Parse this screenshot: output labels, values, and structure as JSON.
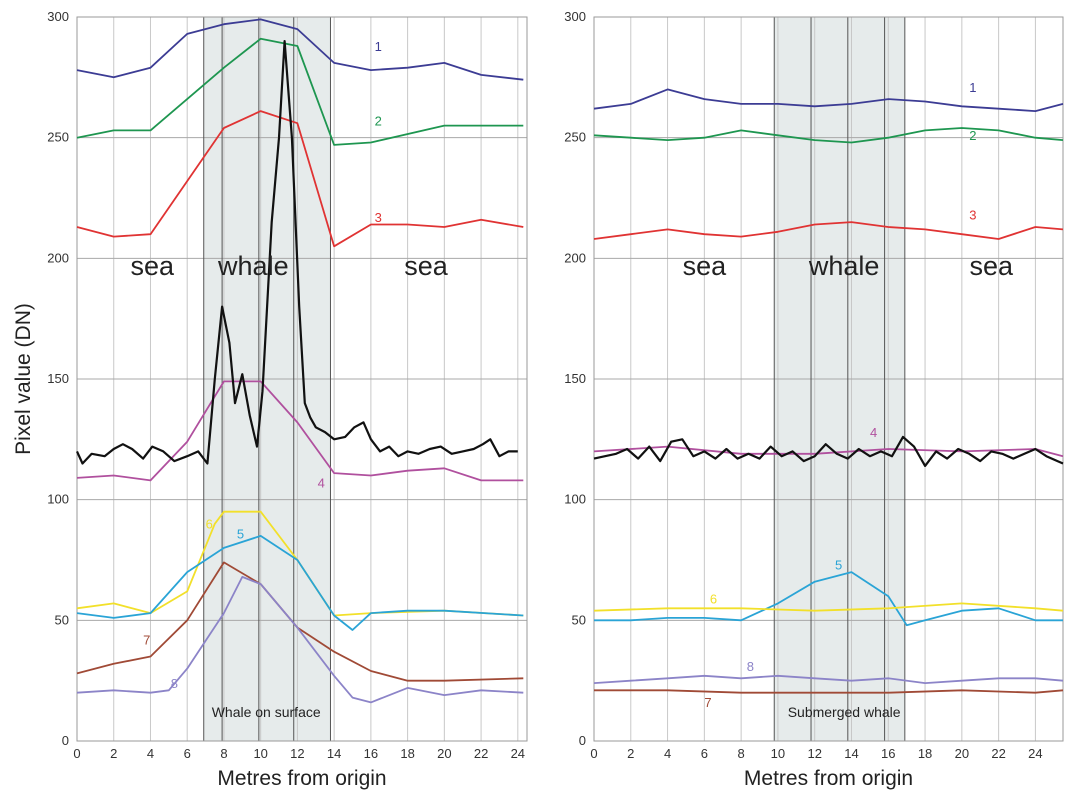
{
  "chart_data": [
    {
      "type": "line",
      "ylabel": "Pixel value (DN)",
      "xlabel": "Metres from origin",
      "xlim": [
        0,
        24.5
      ],
      "ylim": [
        0,
        300
      ],
      "xticks": [
        "0",
        "2",
        "4",
        "6",
        "8",
        "10",
        "12",
        "14",
        "16",
        "18",
        "20",
        "22",
        "24"
      ],
      "yticks": [
        "0",
        "50",
        "100",
        "150",
        "200",
        "250",
        "300"
      ],
      "vgrid": [
        0,
        2,
        4,
        6,
        8,
        10,
        12,
        14,
        16,
        18,
        20,
        22,
        24
      ],
      "shade": [
        6.9,
        13.8
      ],
      "dividers": [
        6.9,
        7.9,
        9.9,
        11.8,
        13.8
      ],
      "regions": [
        {
          "label": "sea",
          "x": 4.1,
          "y": 193
        },
        {
          "label": "whale",
          "x": 9.6,
          "y": 193
        },
        {
          "label": "sea",
          "x": 19.0,
          "y": 193
        }
      ],
      "annotation": {
        "text": "Whale on surface",
        "x": 10.3,
        "y": 10
      },
      "series": [
        {
          "name": "1",
          "color": "#3c3c94",
          "label_at": [
            16.4,
            286
          ],
          "x": [
            0,
            2,
            4,
            6,
            8,
            10,
            12,
            14,
            16,
            18,
            20,
            22,
            24.3
          ],
          "y": [
            278,
            275,
            279,
            293,
            297,
            299,
            295,
            281,
            278,
            279,
            281,
            276,
            274
          ]
        },
        {
          "name": "2",
          "color": "#1e9650",
          "label_at": [
            16.4,
            255
          ],
          "x": [
            0,
            2,
            4,
            8,
            10,
            12,
            14,
            16,
            20,
            24.3
          ],
          "y": [
            250,
            253,
            253,
            279,
            291,
            288,
            247,
            248,
            255,
            255
          ]
        },
        {
          "name": "3",
          "color": "#e03333",
          "label_at": [
            16.4,
            215
          ],
          "x": [
            0,
            2,
            4,
            8,
            10,
            12,
            14,
            16,
            18,
            20,
            22,
            24.3
          ],
          "y": [
            213,
            209,
            210,
            254,
            261,
            256,
            205,
            214,
            214,
            213,
            216,
            213
          ]
        },
        {
          "name": "4",
          "color": "#b0509e",
          "label_at": [
            13.3,
            105
          ],
          "x": [
            0,
            2,
            4,
            6,
            8,
            10,
            12,
            14,
            16,
            18,
            20,
            22,
            24.3
          ],
          "y": [
            109,
            110,
            108,
            124,
            149,
            149,
            132,
            111,
            110,
            112,
            113,
            108,
            108
          ]
        },
        {
          "name": "",
          "color": "#111111",
          "label_at": null,
          "x": [
            0,
            0.3,
            0.8,
            1.5,
            2.0,
            2.5,
            3.0,
            3.6,
            4.1,
            4.7,
            5.3,
            6.0,
            6.6,
            7.1,
            7.5,
            7.9,
            8.3,
            8.6,
            9.0,
            9.4,
            9.8,
            10.1,
            10.6,
            11.0,
            11.3,
            11.7,
            12.1,
            12.4,
            12.7,
            13.0,
            13.5,
            14.0,
            14.6,
            15.1,
            15.6,
            16.0,
            16.5,
            17.0,
            17.5,
            18.0,
            18.6,
            19.2,
            19.8,
            20.4,
            21.0,
            21.6,
            22.1,
            22.5,
            23.0,
            23.5,
            24.0
          ],
          "y": [
            120,
            115,
            119,
            118,
            121,
            123,
            121,
            117,
            122,
            120,
            116,
            118,
            120,
            115,
            150,
            180,
            165,
            140,
            152,
            135,
            122,
            145,
            215,
            250,
            290,
            250,
            180,
            140,
            134,
            130,
            128,
            125,
            126,
            130,
            132,
            125,
            120,
            122,
            118,
            120,
            119,
            121,
            122,
            119,
            120,
            121,
            123,
            125,
            118,
            120,
            120
          ]
        },
        {
          "name": "6",
          "color": "#f2e02a",
          "label_at": [
            7.2,
            88
          ],
          "x": [
            0,
            2,
            4,
            6,
            7.5,
            8,
            10,
            12,
            14,
            16,
            20,
            24.3
          ],
          "y": [
            55,
            57,
            53,
            62,
            90,
            95,
            95,
            75,
            52,
            53,
            54,
            52
          ]
        },
        {
          "name": "5",
          "color": "#2aa4d6",
          "label_at": [
            8.9,
            84
          ],
          "x": [
            0,
            2,
            4,
            6,
            8,
            10,
            12,
            14,
            15,
            16,
            18,
            20,
            24.3
          ],
          "y": [
            53,
            51,
            53,
            70,
            80,
            85,
            75,
            52,
            46,
            53,
            54,
            54,
            52
          ]
        },
        {
          "name": "7",
          "color": "#a04a36",
          "label_at": [
            3.8,
            40
          ],
          "x": [
            0,
            2,
            4,
            6,
            8,
            10,
            12,
            14,
            16,
            18,
            20,
            24.3
          ],
          "y": [
            28,
            32,
            35,
            50,
            74,
            65,
            47,
            37,
            29,
            25,
            25,
            26
          ]
        },
        {
          "name": "8",
          "color": "#8c84c8",
          "label_at": [
            5.3,
            22
          ],
          "x": [
            0,
            2,
            4,
            5,
            6,
            8,
            9,
            10,
            12,
            14,
            15,
            16,
            18,
            20,
            22,
            24.3
          ],
          "y": [
            20,
            21,
            20,
            21,
            30,
            53,
            68,
            65,
            47,
            27,
            18,
            16,
            22,
            19,
            21,
            20
          ]
        }
      ]
    },
    {
      "type": "line",
      "ylabel": "",
      "xlabel": "Metres from origin",
      "xlim": [
        0,
        25.5
      ],
      "ylim": [
        0,
        300
      ],
      "xticks": [
        "0",
        "2",
        "4",
        "6",
        "8",
        "10",
        "12",
        "14",
        "16",
        "18",
        "20",
        "22",
        "24"
      ],
      "yticks": [
        "0",
        "50",
        "100",
        "150",
        "200",
        "250",
        "300"
      ],
      "vgrid": [
        0,
        2,
        4,
        6,
        8,
        10,
        12,
        14,
        16,
        18,
        20,
        22,
        24
      ],
      "shade": [
        9.8,
        16.9
      ],
      "dividers": [
        9.8,
        11.8,
        13.8,
        15.8,
        16.9
      ],
      "regions": [
        {
          "label": "sea",
          "x": 6.0,
          "y": 193
        },
        {
          "label": "whale",
          "x": 13.6,
          "y": 193
        },
        {
          "label": "sea",
          "x": 21.6,
          "y": 193
        }
      ],
      "annotation": {
        "text": "Submerged whale",
        "x": 13.6,
        "y": 10
      },
      "series": [
        {
          "name": "1",
          "color": "#3c3c94",
          "label_at": [
            20.6,
            269
          ],
          "x": [
            0,
            2,
            4,
            6,
            8,
            10,
            12,
            14,
            16,
            18,
            20,
            22,
            24,
            25.5
          ],
          "y": [
            262,
            264,
            270,
            266,
            264,
            264,
            263,
            264,
            266,
            265,
            263,
            262,
            261,
            264
          ]
        },
        {
          "name": "2",
          "color": "#1e9650",
          "label_at": [
            20.6,
            249
          ],
          "x": [
            0,
            2,
            4,
            6,
            8,
            10,
            12,
            14,
            16,
            18,
            20,
            22,
            24,
            25.5
          ],
          "y": [
            251,
            250,
            249,
            250,
            253,
            251,
            249,
            248,
            250,
            253,
            254,
            253,
            250,
            249
          ]
        },
        {
          "name": "3",
          "color": "#e03333",
          "label_at": [
            20.6,
            216
          ],
          "x": [
            0,
            2,
            4,
            6,
            8,
            10,
            12,
            14,
            16,
            18,
            20,
            22,
            24,
            25.5
          ],
          "y": [
            208,
            210,
            212,
            210,
            209,
            211,
            214,
            215,
            213,
            212,
            210,
            208,
            213,
            212
          ]
        },
        {
          "name": "4",
          "color": "#b0509e",
          "label_at": [
            15.2,
            126
          ],
          "x": [
            0,
            4,
            8,
            12,
            16,
            20,
            24,
            25.5
          ],
          "y": [
            120,
            122,
            119,
            119,
            121,
            120,
            121,
            118
          ]
        },
        {
          "name": "",
          "color": "#111111",
          "label_at": null,
          "x": [
            0,
            0.6,
            1.2,
            1.8,
            2.4,
            3.0,
            3.6,
            4.2,
            4.8,
            5.4,
            6.0,
            6.6,
            7.2,
            7.8,
            8.4,
            9.0,
            9.6,
            10.2,
            10.8,
            11.4,
            12.0,
            12.6,
            13.2,
            13.8,
            14.4,
            15.0,
            15.6,
            16.2,
            16.8,
            17.4,
            18.0,
            18.6,
            19.2,
            19.8,
            20.4,
            21.0,
            21.6,
            22.2,
            22.8,
            23.4,
            24.0,
            24.6,
            25.2,
            25.5
          ],
          "y": [
            117,
            118,
            119,
            121,
            117,
            122,
            116,
            124,
            125,
            118,
            120,
            117,
            121,
            117,
            119,
            117,
            122,
            118,
            120,
            116,
            118,
            123,
            119,
            117,
            121,
            118,
            120,
            118,
            126,
            122,
            114,
            120,
            117,
            121,
            119,
            116,
            120,
            119,
            117,
            119,
            121,
            118,
            116,
            115
          ]
        },
        {
          "name": "5",
          "color": "#2aa4d6",
          "label_at": [
            13.3,
            71
          ],
          "x": [
            0,
            2,
            4,
            6,
            8,
            10,
            12,
            14,
            16,
            17,
            18,
            20,
            22,
            24,
            25.5
          ],
          "y": [
            50,
            50,
            51,
            51,
            50,
            57,
            66,
            70,
            60,
            48,
            50,
            54,
            55,
            50,
            50
          ]
        },
        {
          "name": "6",
          "color": "#f2e02a",
          "label_at": [
            6.5,
            57
          ],
          "x": [
            0,
            4,
            8,
            12,
            16,
            20,
            24,
            25.5
          ],
          "y": [
            54,
            55,
            55,
            54,
            55,
            57,
            55,
            54
          ]
        },
        {
          "name": "8",
          "color": "#8c84c8",
          "label_at": [
            8.5,
            29
          ],
          "x": [
            0,
            2,
            4,
            6,
            8,
            10,
            12,
            14,
            16,
            18,
            20,
            22,
            24,
            25.5
          ],
          "y": [
            24,
            25,
            26,
            27,
            26,
            27,
            26,
            25,
            26,
            24,
            25,
            26,
            26,
            25
          ]
        },
        {
          "name": "7",
          "color": "#a04a36",
          "label_at": [
            6.2,
            14
          ],
          "x": [
            0,
            4,
            8,
            12,
            16,
            20,
            24,
            25.5
          ],
          "y": [
            21,
            21,
            20,
            20,
            20,
            21,
            20,
            21
          ]
        }
      ]
    }
  ]
}
